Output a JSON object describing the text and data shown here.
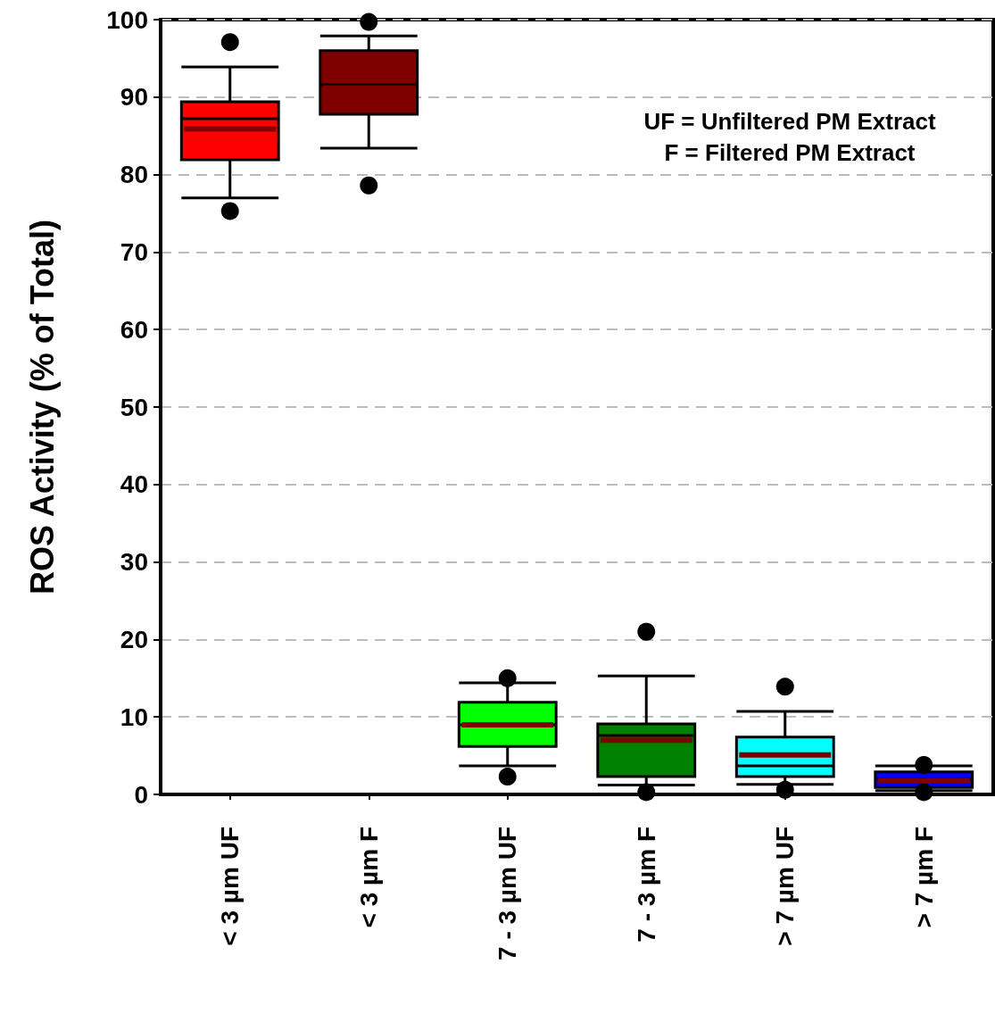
{
  "chart_data": {
    "type": "box",
    "ylabel": "ROS Activity (% of Total)",
    "categories": [
      "< 3 µm UF",
      "< 3 µm F",
      "7 - 3 µm UF",
      "7 - 3 µm F",
      "> 7 µm UF",
      "> 7 µm F"
    ],
    "colors": [
      "#ff0000",
      "#800000",
      "#00ff00",
      "#008000",
      "#00ffff",
      "#0000ff"
    ],
    "boxes": [
      {
        "low": 77.0,
        "q1": 81.9,
        "median": 87.2,
        "q3": 89.4,
        "high": 93.9,
        "mean": 85.9,
        "outliers": [
          97.1,
          75.3
        ]
      },
      {
        "low": 83.4,
        "q1": 87.8,
        "median": 91.6,
        "q3": 96.0,
        "high": 97.9,
        "mean": 91.2,
        "outliers": [
          99.7,
          78.6
        ]
      },
      {
        "low": 3.7,
        "q1": 6.2,
        "median": 9.0,
        "q3": 11.9,
        "high": 14.4,
        "mean": 9.0,
        "outliers": [
          15.0,
          2.3
        ]
      },
      {
        "low": 1.2,
        "q1": 2.3,
        "median": 7.6,
        "q3": 9.1,
        "high": 15.3,
        "mean": 7.0,
        "outliers": [
          21.0,
          0.3
        ]
      },
      {
        "low": 1.3,
        "q1": 2.3,
        "median": 3.7,
        "q3": 7.4,
        "high": 10.7,
        "mean": 5.1,
        "outliers": [
          13.9,
          0.6
        ]
      },
      {
        "low": 0.5,
        "q1": 0.9,
        "median": 2.0,
        "q3": 2.9,
        "high": 3.7,
        "mean": 1.8,
        "outliers": [
          3.8,
          0.3
        ]
      }
    ],
    "ylim": [
      0,
      100
    ],
    "yticks": [
      0,
      10,
      20,
      30,
      40,
      50,
      60,
      70,
      80,
      90,
      100
    ],
    "grid": "y",
    "annotations": [
      "UF = Unfiltered PM Extract",
      "F = Filtered PM Extract"
    ]
  }
}
